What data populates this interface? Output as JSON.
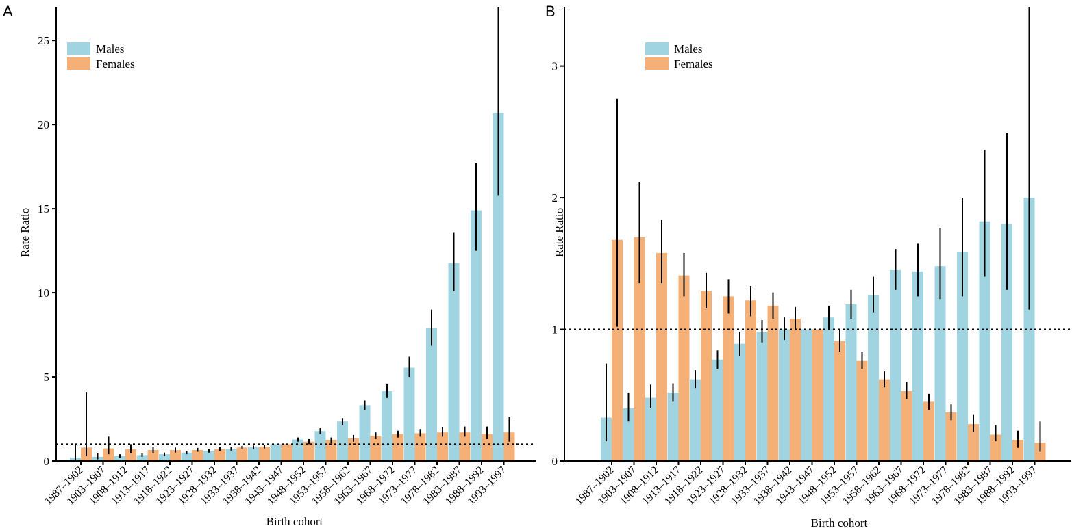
{
  "colors": {
    "males": "#9fd4e0",
    "females": "#f5b078",
    "errorbar": "#000000",
    "reference": "#000000"
  },
  "chart_data": [
    {
      "panel": "A",
      "type": "bar",
      "xlabel": "Birth cohort",
      "ylabel": "Rate Ratio",
      "ylim": [
        0,
        27
      ],
      "yticks": [
        0,
        5,
        10,
        15,
        20,
        25
      ],
      "reference_line": 1,
      "legend": {
        "position": "top-left",
        "entries": [
          "Males",
          "Females"
        ]
      },
      "categories": [
        "1987–1902",
        "1903–1907",
        "1908–1912",
        "1913–1917",
        "1918–1922",
        "1923–1927",
        "1928–1932",
        "1933–1937",
        "1938–1942",
        "1943–1947",
        "1948–1952",
        "1953–1957",
        "1958–1962",
        "1963–1967",
        "1968–1972",
        "1973–1977",
        "1978–1982",
        "1983–1987",
        "1988–1992",
        "1993–1997"
      ],
      "series": [
        {
          "name": "Males",
          "values": [
            0.2,
            0.25,
            0.3,
            0.35,
            0.4,
            0.5,
            0.6,
            0.72,
            0.82,
            1.0,
            1.28,
            1.78,
            2.35,
            3.32,
            4.15,
            5.55,
            7.9,
            11.75,
            14.9,
            20.7
          ],
          "lower": [
            0.05,
            0.1,
            0.2,
            0.25,
            0.3,
            0.4,
            0.5,
            0.62,
            0.72,
            1.0,
            1.15,
            1.6,
            2.15,
            3.05,
            3.75,
            5.0,
            6.85,
            10.1,
            12.5,
            15.8
          ],
          "upper": [
            1.0,
            0.45,
            0.4,
            0.45,
            0.5,
            0.6,
            0.7,
            0.82,
            0.92,
            1.0,
            1.4,
            1.95,
            2.55,
            3.6,
            4.6,
            6.2,
            9.0,
            13.6,
            17.7,
            27.0
          ]
        },
        {
          "name": "Females",
          "values": [
            0.8,
            0.75,
            0.7,
            0.65,
            0.65,
            0.65,
            0.7,
            0.8,
            0.85,
            1.0,
            1.15,
            1.25,
            1.35,
            1.5,
            1.6,
            1.65,
            1.7,
            1.7,
            1.6,
            1.7
          ],
          "lower": [
            0.3,
            0.4,
            0.45,
            0.45,
            0.5,
            0.55,
            0.6,
            0.7,
            0.75,
            1.0,
            1.0,
            1.05,
            1.15,
            1.3,
            1.4,
            1.45,
            1.45,
            1.45,
            1.3,
            1.15
          ],
          "upper": [
            4.1,
            1.45,
            1.0,
            0.85,
            0.8,
            0.78,
            0.82,
            0.9,
            0.95,
            1.0,
            1.3,
            1.4,
            1.55,
            1.7,
            1.8,
            1.9,
            2.0,
            2.05,
            2.05,
            2.6
          ]
        }
      ]
    },
    {
      "panel": "B",
      "type": "bar",
      "xlabel": "Birth cohort",
      "ylabel": "Rate Ratio",
      "ylim": [
        0,
        3.45
      ],
      "yticks": [
        0,
        1,
        2,
        3
      ],
      "reference_line": 1,
      "legend": {
        "position": "top-left",
        "entries": [
          "Males",
          "Females"
        ]
      },
      "categories": [
        "1987–1902",
        "1903–1907",
        "1908–1912",
        "1913–1917",
        "1918–1922",
        "1923–1927",
        "1928–1932",
        "1933–1937",
        "1938–1942",
        "1943–1947",
        "1948–1952",
        "1953–1957",
        "1958–1962",
        "1963–1967",
        "1968–1972",
        "1973–1977",
        "1978–1982",
        "1983–1987",
        "1988–1992",
        "1993–1997"
      ],
      "series": [
        {
          "name": "Males",
          "values": [
            0.33,
            0.4,
            0.48,
            0.52,
            0.62,
            0.77,
            0.89,
            0.98,
            1.0,
            1.0,
            1.09,
            1.19,
            1.26,
            1.45,
            1.44,
            1.48,
            1.59,
            1.82,
            1.8,
            2.0
          ],
          "lower": [
            0.15,
            0.3,
            0.4,
            0.45,
            0.55,
            0.7,
            0.8,
            0.9,
            0.92,
            1.0,
            1.0,
            1.08,
            1.13,
            1.3,
            1.25,
            1.23,
            1.25,
            1.4,
            1.3,
            1.15
          ],
          "upper": [
            0.74,
            0.52,
            0.58,
            0.59,
            0.69,
            0.84,
            0.98,
            1.07,
            1.09,
            1.0,
            1.18,
            1.3,
            1.4,
            1.61,
            1.65,
            1.77,
            2.0,
            2.36,
            2.49,
            3.45
          ]
        },
        {
          "name": "Females",
          "values": [
            1.68,
            1.7,
            1.58,
            1.41,
            1.29,
            1.25,
            1.22,
            1.18,
            1.08,
            1.0,
            0.91,
            0.76,
            0.62,
            0.53,
            0.45,
            0.37,
            0.28,
            0.2,
            0.16,
            0.14
          ],
          "lower": [
            1.02,
            1.35,
            1.35,
            1.25,
            1.16,
            1.12,
            1.1,
            1.08,
            1.0,
            1.0,
            0.83,
            0.7,
            0.56,
            0.47,
            0.39,
            0.31,
            0.22,
            0.15,
            0.1,
            0.07
          ],
          "upper": [
            2.75,
            2.12,
            1.83,
            1.58,
            1.43,
            1.38,
            1.33,
            1.28,
            1.17,
            1.0,
            1.0,
            0.83,
            0.68,
            0.6,
            0.51,
            0.43,
            0.35,
            0.27,
            0.23,
            0.3
          ]
        }
      ]
    }
  ]
}
